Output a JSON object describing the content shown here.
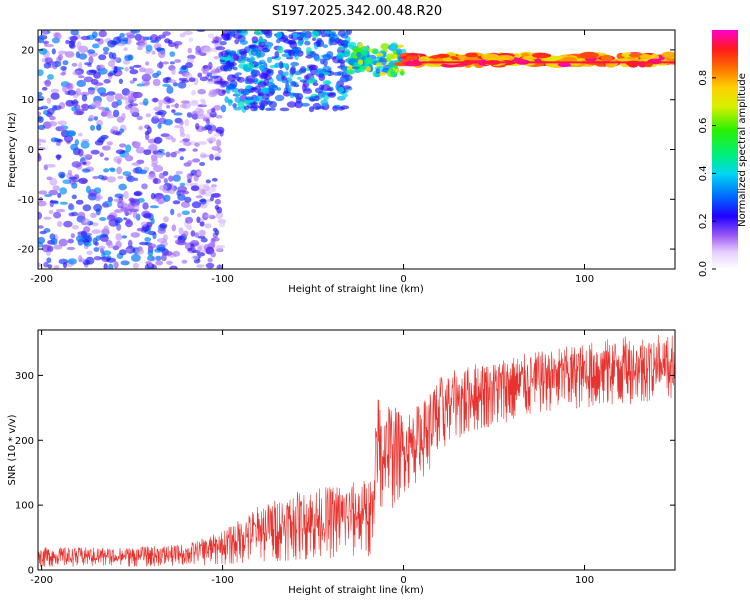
{
  "figure": {
    "title": "S197.2025.342.00.48.R20"
  },
  "chart_data": [
    {
      "type": "heatmap",
      "title": "S197.2025.342.00.48.R20",
      "xlabel": "Height of straight line (km)",
      "ylabel": "Frequency (Hz)",
      "xlim": [
        -202,
        150
      ],
      "ylim": [
        -24,
        24
      ],
      "xticks": [
        -200,
        -100,
        0,
        100
      ],
      "yticks": [
        -20,
        -10,
        0,
        10,
        20
      ],
      "colorbar": {
        "label": "Normalized spectral amplitude",
        "range": [
          0.0,
          1.0
        ],
        "ticks": [
          0.0,
          0.2,
          0.4,
          0.6,
          0.8
        ]
      },
      "regions": [
        {
          "name": "scattered noise",
          "x": [
            -202,
            -100
          ],
          "y": [
            -24,
            24
          ],
          "amplitude": [
            0.1,
            0.35
          ]
        },
        {
          "name": "upper noise band",
          "x": [
            -100,
            -30
          ],
          "y": [
            8,
            24
          ],
          "amplitude": [
            0.2,
            0.45
          ]
        },
        {
          "name": "transition",
          "x": [
            -30,
            0
          ],
          "y": [
            15,
            21
          ],
          "amplitude": [
            0.3,
            0.75
          ]
        },
        {
          "name": "carrier line",
          "x": [
            0,
            150
          ],
          "y": [
            17,
            19
          ],
          "amplitude": [
            0.7,
            1.0
          ]
        }
      ],
      "carrier_frequency_hz": 17.5
    },
    {
      "type": "line",
      "xlabel": "Height of straight line (km)",
      "ylabel": "SNR (10 * v/v)",
      "xlim": [
        -202,
        150
      ],
      "ylim": [
        0,
        370
      ],
      "xticks": [
        -200,
        -100,
        0,
        100
      ],
      "yticks": [
        0,
        100,
        200,
        300
      ],
      "color": "#e8322e",
      "envelope": {
        "x": [
          -202,
          -150,
          -120,
          -100,
          -80,
          -60,
          -40,
          -20,
          -16,
          -15,
          -10,
          0,
          10,
          20,
          30,
          40,
          60,
          80,
          100,
          120,
          150
        ],
        "lower": [
          5,
          5,
          6,
          8,
          12,
          15,
          18,
          20,
          25,
          60,
          80,
          120,
          140,
          170,
          200,
          215,
          230,
          245,
          250,
          255,
          255
        ],
        "upper": [
          35,
          35,
          40,
          60,
          100,
          120,
          130,
          140,
          145,
          290,
          270,
          240,
          260,
          300,
          310,
          320,
          330,
          340,
          350,
          360,
          365
        ]
      }
    }
  ]
}
